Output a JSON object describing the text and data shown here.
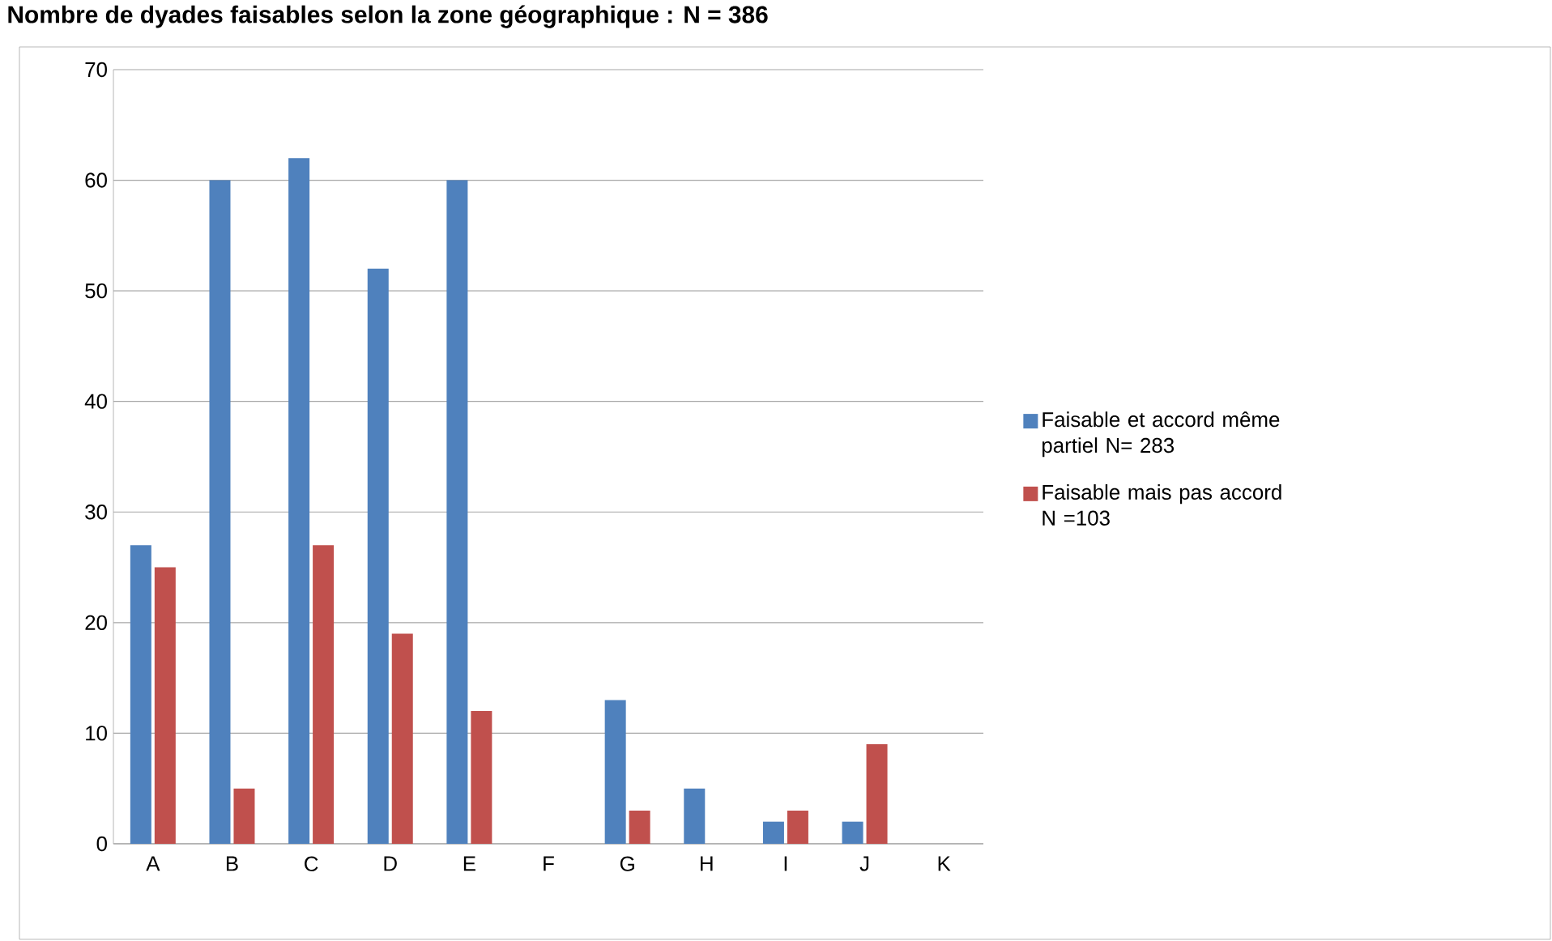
{
  "chart_data": {
    "type": "bar",
    "title": "Nombre de dyades faisables selon la zone géographique : N = 386",
    "categories": [
      "A",
      "B",
      "C",
      "D",
      "E",
      "F",
      "G",
      "H",
      "I",
      "J",
      "K"
    ],
    "series": [
      {
        "name": "Faisable et accord même partiel N= 283",
        "color": "#4f81bd",
        "values": [
          27,
          60,
          62,
          52,
          60,
          0,
          13,
          5,
          2,
          2,
          0
        ]
      },
      {
        "name": "Faisable mais pas accord N =103",
        "color": "#c0504d",
        "values": [
          25,
          5,
          27,
          19,
          12,
          0,
          3,
          0,
          3,
          9,
          0
        ]
      }
    ],
    "ylim": [
      0,
      70
    ],
    "yticks": [
      0,
      10,
      20,
      30,
      40,
      50,
      60,
      70
    ],
    "grid": "y",
    "legend": "right"
  }
}
